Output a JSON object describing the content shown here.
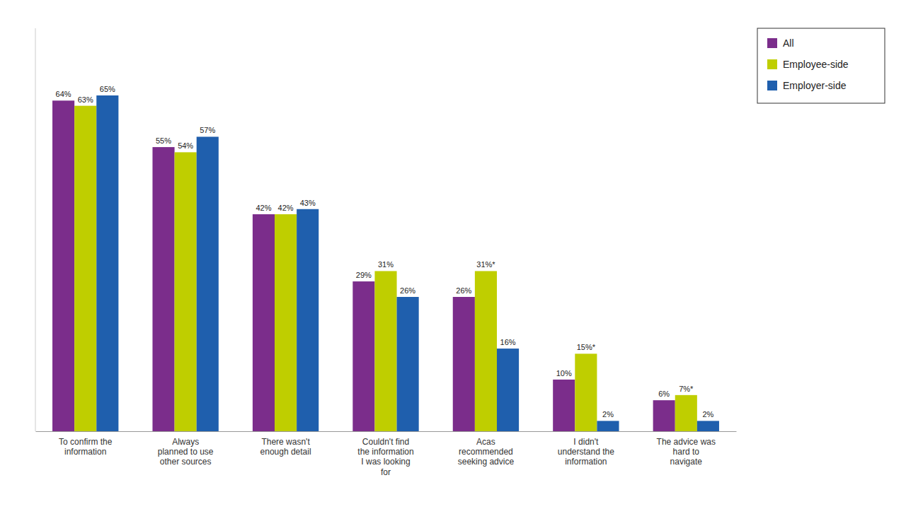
{
  "chart_data": {
    "type": "bar",
    "categories": [
      "To confirm the\ninformation",
      "Always\nplanned to use\nother sources",
      "There wasn't\nenough detail",
      "Couldn't find\nthe information\nI was looking\nfor",
      "Acas\nrecommended\nseeking advice",
      "I didn't\nunderstand the\ninformation",
      "The advice was\nhard to\nnavigate"
    ],
    "series": [
      {
        "name": "All",
        "color": "#7B2D8B",
        "values": [
          64,
          55,
          42,
          29,
          26,
          10,
          6
        ],
        "value_labels": [
          "64%",
          "55%",
          "42%",
          "29%",
          "26%",
          "10%",
          "6%"
        ]
      },
      {
        "name": "Employee-side",
        "color": "#BFCE00",
        "values": [
          63,
          54,
          42,
          31,
          31,
          15,
          7
        ],
        "value_labels": [
          "63%",
          "54%",
          "42%",
          "31%",
          "31%*",
          "15%*",
          "7%*"
        ]
      },
      {
        "name": "Employer-side",
        "color": "#1F5FAD",
        "values": [
          65,
          57,
          43,
          26,
          16,
          2,
          2
        ],
        "value_labels": [
          "65%",
          "57%",
          "43%",
          "26%",
          "16%",
          "2%",
          "2%"
        ]
      }
    ],
    "ylim": [
      0,
      78
    ],
    "grid": false,
    "legend": "right",
    "data_labels": true,
    "tick_labels": "x"
  }
}
